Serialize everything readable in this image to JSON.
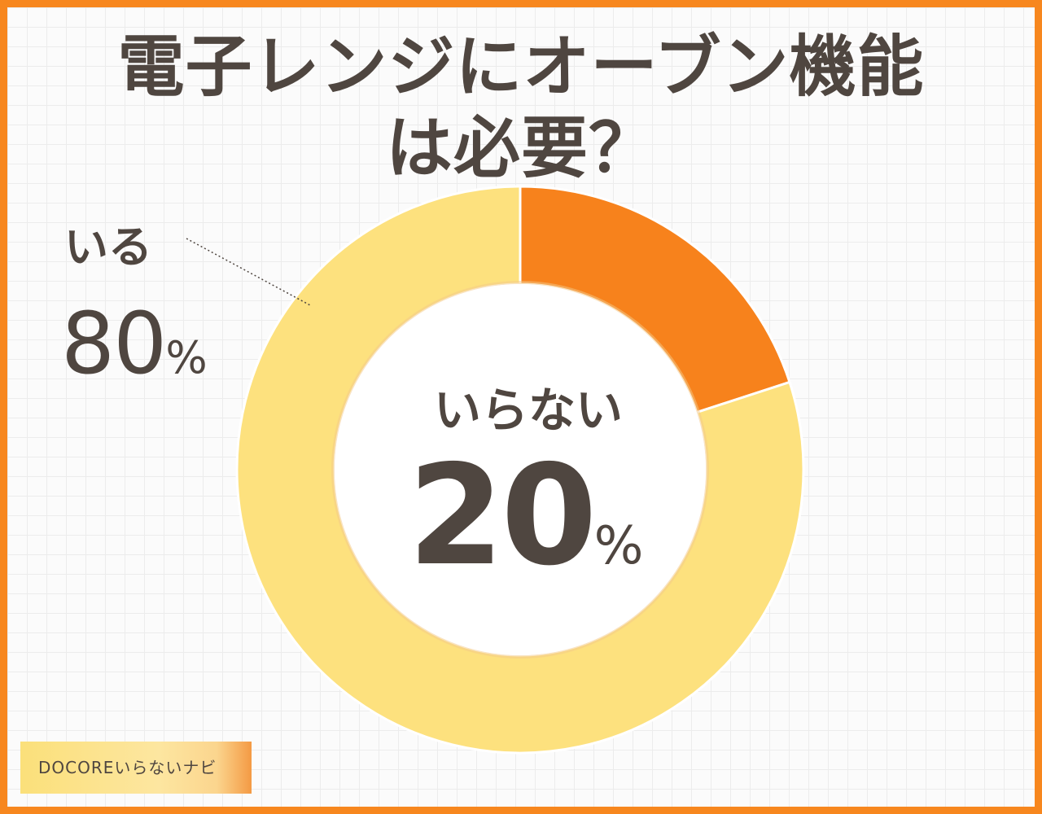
{
  "title_line1": "電子レンジにオーブン機能",
  "title_line2": "は必要？",
  "brand": "DOCOREいらないナビ",
  "colors": {
    "frame": "#f7871e",
    "iru": "#fde17e",
    "iranai": "#f7821c",
    "text": "#4f4640"
  },
  "chart_data": {
    "type": "pie",
    "style": "donut",
    "categories": [
      "いらない",
      "いる"
    ],
    "values": [
      20,
      80
    ],
    "unit": "%",
    "labels": {
      "iru": {
        "name": "いる",
        "value": "80",
        "unit": "%"
      },
      "iranai": {
        "name": "いらない",
        "value": "20",
        "unit": "%"
      }
    }
  }
}
